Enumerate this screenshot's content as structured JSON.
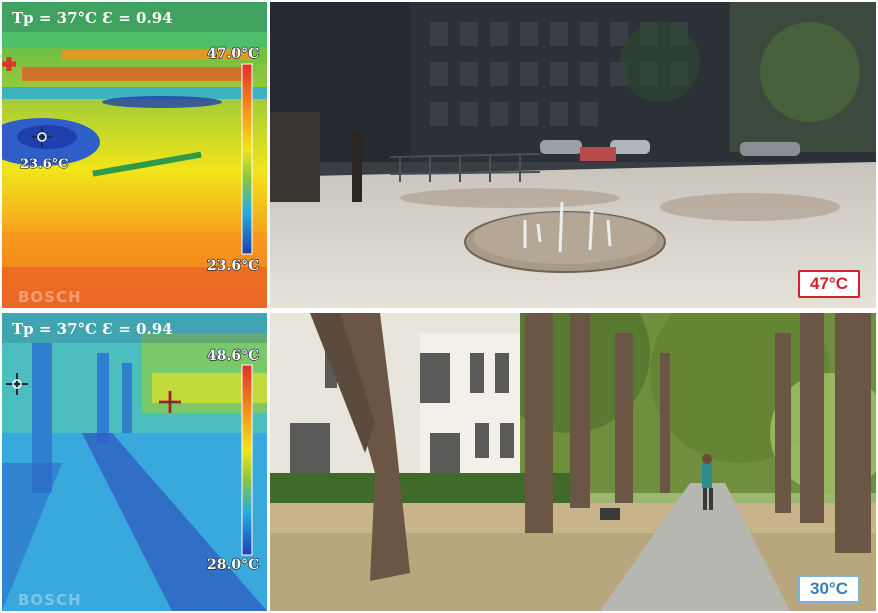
{
  "panels": {
    "top_thermal": {
      "param_label": "Tp = 37°C  Ɛ = 0.94",
      "scale_max": "47.0°C",
      "scale_min": "23.6°C",
      "spot_label": "23.6°C",
      "brand": "BOSCH"
    },
    "top_photo": {
      "badge": "47°C"
    },
    "bottom_thermal": {
      "param_label": "Tp = 37°C  Ɛ = 0.94",
      "scale_max": "48.6°C",
      "scale_min": "28.0°C",
      "brand": "BOSCH"
    },
    "bottom_photo": {
      "badge": "30°C"
    }
  },
  "colors": {
    "hot": "#e0302a",
    "cold": "#1f3fae",
    "badge_hot": "#d2232a",
    "badge_cool": "#3a7fb8"
  }
}
